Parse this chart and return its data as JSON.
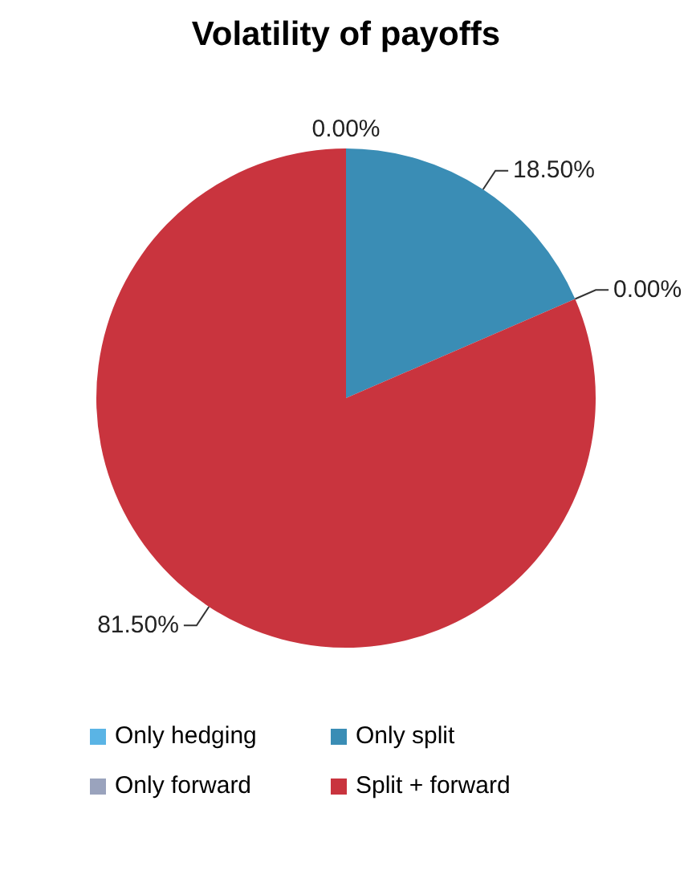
{
  "chart_data": {
    "type": "pie",
    "title": "Volatility of payoffs",
    "categories": [
      "Only hedging",
      "Only split",
      "Only forward",
      "Split + forward"
    ],
    "values": [
      0,
      18.5,
      0,
      81.5
    ],
    "colors": [
      "#5ab4e5",
      "#3a8db5",
      "#9aa3bd",
      "#c9343e"
    ],
    "value_labels": [
      "0.00%",
      "18.50%",
      "0.00%",
      "81.50%"
    ],
    "legend": "bottom"
  }
}
